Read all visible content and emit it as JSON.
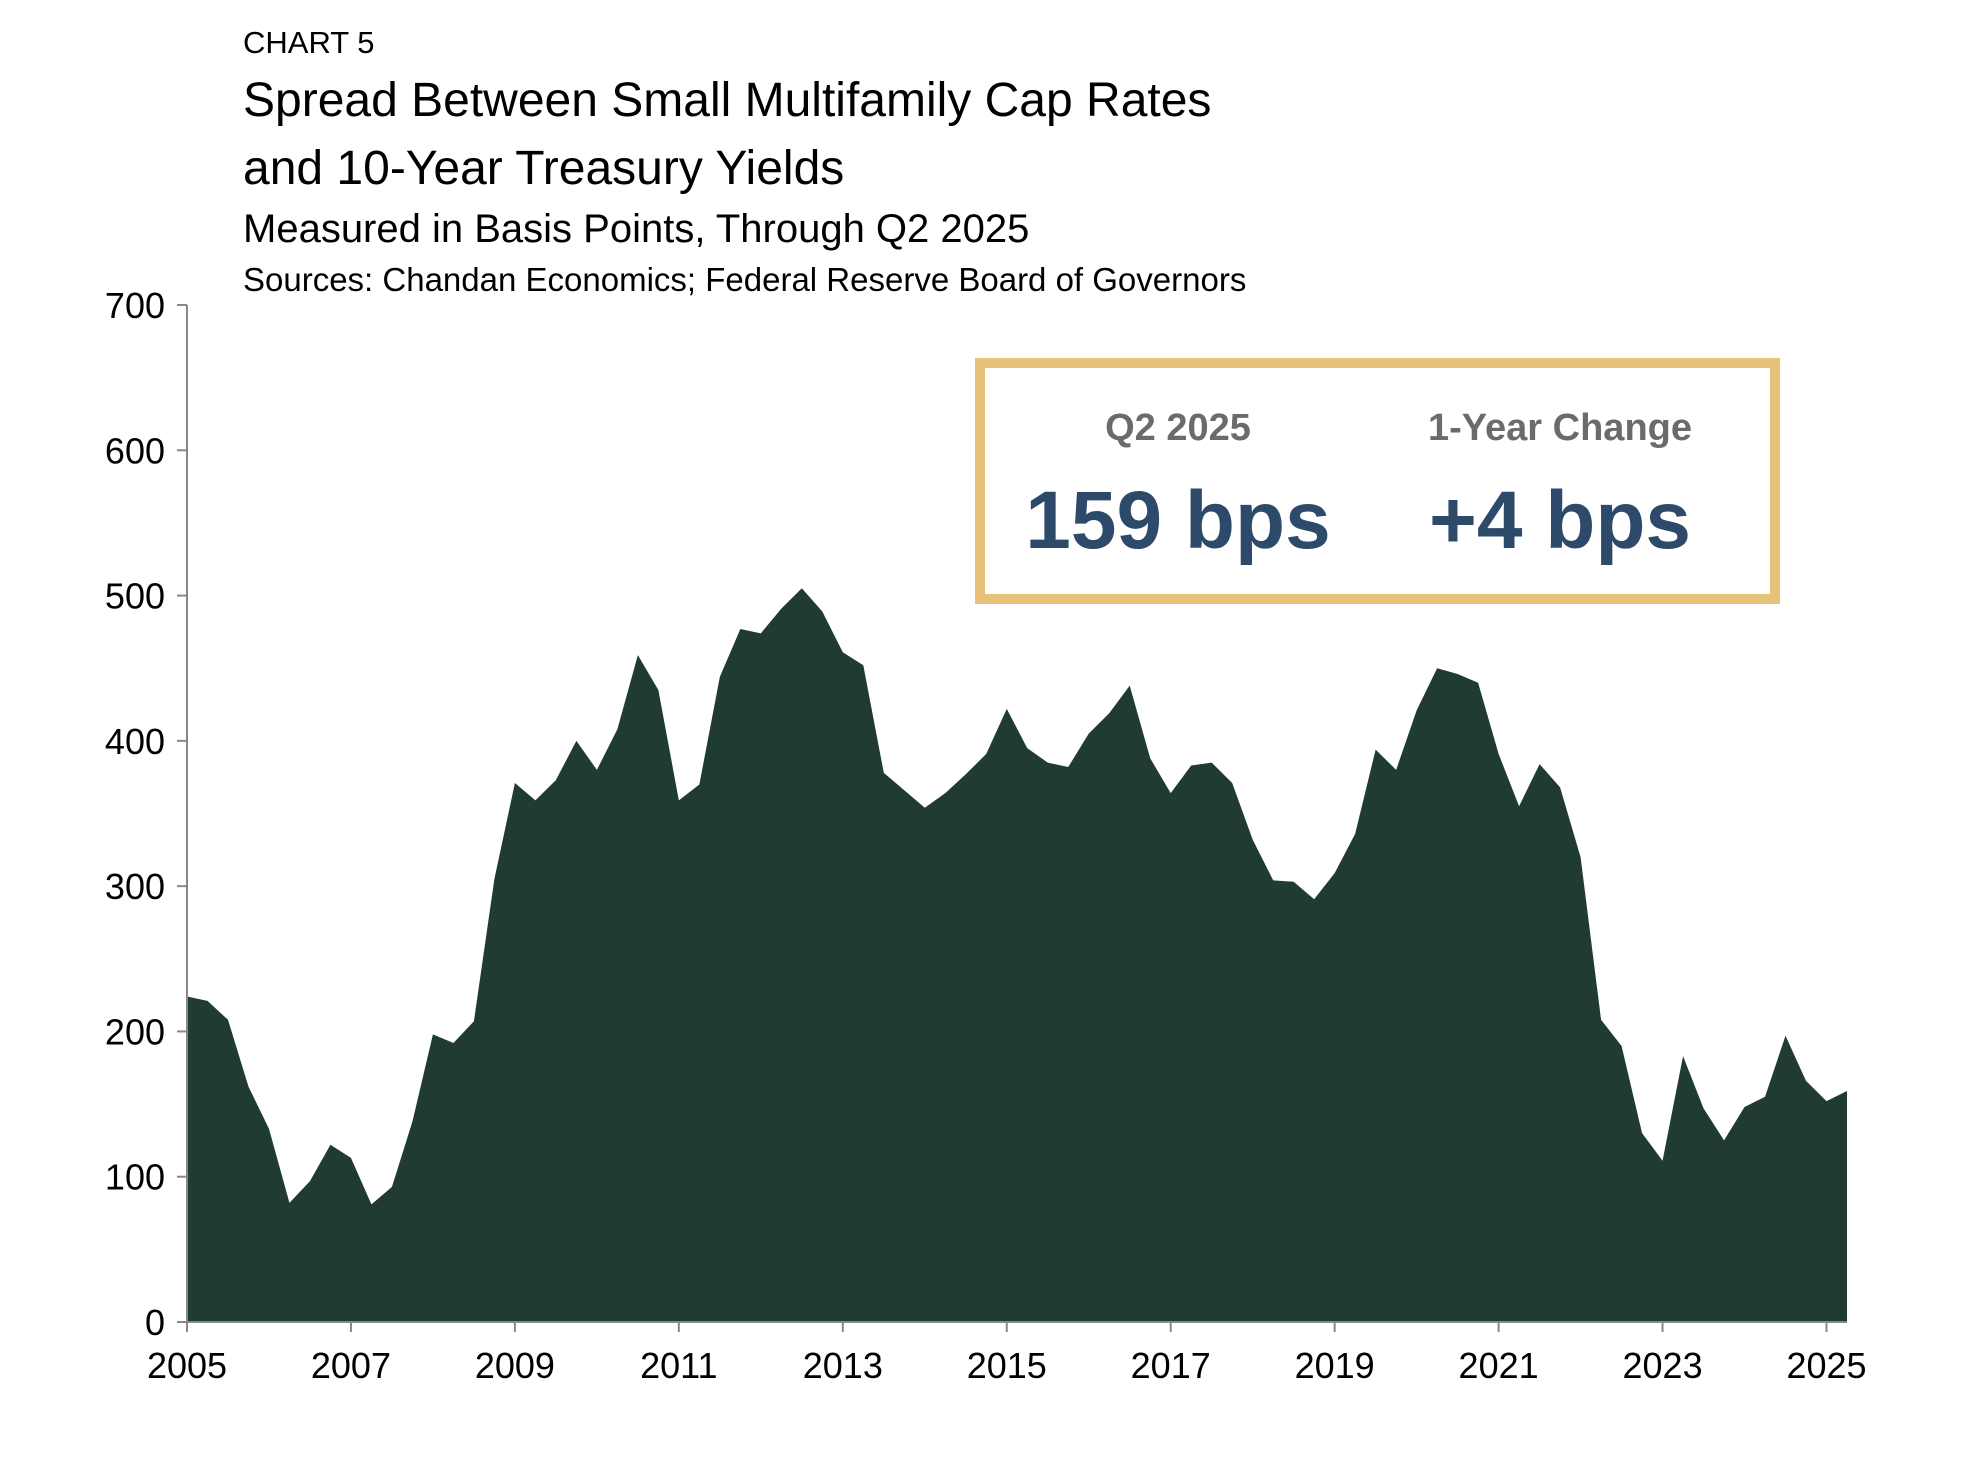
{
  "chart_data": {
    "type": "area",
    "label": "CHART 5",
    "title": "Spread Between Small Multifamily Cap Rates and 10-Year Treasury Yields",
    "subtitle": "Measured in Basis Points, Through Q2 2025",
    "source": "Sources: Chandan Economics; Federal Reserve Board of Governors",
    "categories": [
      "2005",
      null,
      null,
      null,
      null,
      null,
      null,
      null,
      "2007",
      null,
      null,
      null,
      null,
      null,
      null,
      null,
      "2009",
      null,
      null,
      null,
      null,
      null,
      null,
      null,
      "2011",
      null,
      null,
      null,
      null,
      null,
      null,
      null,
      "2013",
      null,
      null,
      null,
      null,
      null,
      null,
      null,
      "2015",
      null,
      null,
      null,
      null,
      null,
      null,
      null,
      "2017",
      null,
      null,
      null,
      null,
      null,
      null,
      null,
      "2019",
      null,
      null,
      null,
      null,
      null,
      null,
      null,
      "2021",
      null,
      null,
      null,
      null,
      null,
      null,
      null,
      "2023",
      null,
      null,
      null,
      null,
      null,
      null,
      null,
      "2025",
      null
    ],
    "series": [
      {
        "color": "#1f3b33",
        "values": [
          224,
          221,
          208,
          162,
          133,
          82,
          97,
          122,
          113,
          81,
          93,
          138,
          198,
          192,
          207,
          305,
          371,
          359,
          373,
          400,
          380,
          408,
          459,
          435,
          359,
          370,
          444,
          477,
          474,
          491,
          505,
          489,
          461,
          452,
          378,
          366,
          354,
          364,
          377,
          391,
          422,
          395,
          385,
          382,
          405,
          419,
          438,
          388,
          364,
          383,
          385,
          371,
          332,
          304,
          303,
          291,
          309,
          336,
          394,
          380,
          421,
          450,
          446,
          440,
          391,
          355,
          384,
          368,
          320,
          208,
          190,
          130,
          111,
          183,
          147,
          125,
          148,
          155,
          197,
          166,
          152,
          159
        ]
      }
    ],
    "ylim": [
      0,
      700
    ],
    "yticks": [
      0,
      100,
      200,
      300,
      400,
      500,
      600,
      700
    ],
    "callout": [
      {
        "label": "Q2 2025",
        "value": "159 bps"
      },
      {
        "label": "1-Year Change",
        "value": "+4 bps"
      }
    ]
  }
}
